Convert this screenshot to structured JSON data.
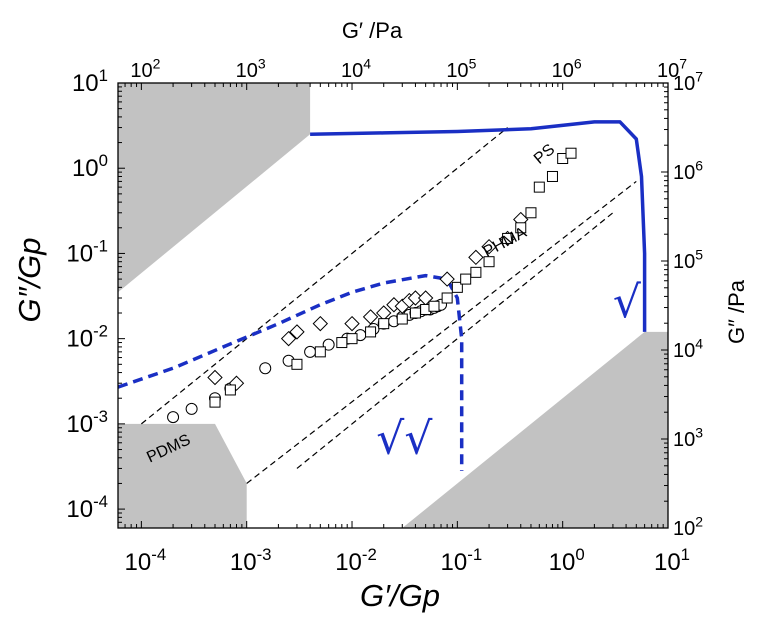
{
  "chart_data": {
    "type": "scatter",
    "title": "",
    "xlabel": "G′/Gp",
    "ylabel": "G″/Gp",
    "x2label": "G′ /Pa",
    "y2label": "G″ /Pa",
    "xscale": "log",
    "yscale": "log",
    "xlim": [
      6e-05,
      10
    ],
    "ylim": [
      6e-05,
      10
    ],
    "x2lim": [
      60,
      10000000
    ],
    "y2lim": [
      100,
      10000000
    ],
    "x_ticks": [
      {
        "value": 0.0001,
        "base": "10",
        "exp": "-4"
      },
      {
        "value": 0.001,
        "base": "10",
        "exp": "-3"
      },
      {
        "value": 0.01,
        "base": "10",
        "exp": "-2"
      },
      {
        "value": 0.1,
        "base": "10",
        "exp": "-1"
      },
      {
        "value": 1,
        "base": "10",
        "exp": "0"
      },
      {
        "value": 10,
        "base": "10",
        "exp": "1"
      }
    ],
    "y_ticks": [
      {
        "value": 0.0001,
        "base": "10",
        "exp": "-4"
      },
      {
        "value": 0.001,
        "base": "10",
        "exp": "-3"
      },
      {
        "value": 0.01,
        "base": "10",
        "exp": "-2"
      },
      {
        "value": 0.1,
        "base": "10",
        "exp": "-1"
      },
      {
        "value": 1,
        "base": "10",
        "exp": "0"
      },
      {
        "value": 10,
        "base": "10",
        "exp": "1"
      }
    ],
    "x2_ticks": [
      {
        "value": 100,
        "base": "10",
        "exp": "2"
      },
      {
        "value": 1000,
        "base": "10",
        "exp": "3"
      },
      {
        "value": 10000,
        "base": "10",
        "exp": "4"
      },
      {
        "value": 100000,
        "base": "10",
        "exp": "5"
      },
      {
        "value": 1000000,
        "base": "10",
        "exp": "6"
      },
      {
        "value": 10000000,
        "base": "10",
        "exp": "7"
      }
    ],
    "y2_ticks": [
      {
        "value": 100,
        "base": "10",
        "exp": "2"
      },
      {
        "value": 1000,
        "base": "10",
        "exp": "3"
      },
      {
        "value": 10000,
        "base": "10",
        "exp": "4"
      },
      {
        "value": 100000,
        "base": "10",
        "exp": "5"
      },
      {
        "value": 1000000,
        "base": "10",
        "exp": "6"
      },
      {
        "value": 10000000,
        "base": "10",
        "exp": "7"
      }
    ],
    "gray_regions": [
      {
        "name": "upper-left-excluded",
        "points": [
          [
            6e-05,
            10
          ],
          [
            6e-05,
            0.035
          ],
          [
            0.004,
            2.5
          ],
          [
            0.004,
            10
          ]
        ]
      },
      {
        "name": "lower-right-excluded",
        "points": [
          [
            0.03,
            6e-05
          ],
          [
            6,
            0.012
          ],
          [
            10,
            0.012
          ],
          [
            10,
            6e-05
          ]
        ]
      },
      {
        "name": "lower-left-excluded",
        "points": [
          [
            6e-05,
            0.001
          ],
          [
            0.0005,
            0.001
          ],
          [
            0.001,
            0.0002
          ],
          [
            0.001,
            6e-05
          ],
          [
            6e-05,
            6e-05
          ]
        ]
      }
    ],
    "dashed_guides": [
      {
        "from": [
          0.0001,
          0.001
        ],
        "to": [
          0.3,
          3
        ]
      },
      {
        "from": [
          0.003,
          0.0003
        ],
        "to": [
          3,
          0.3
        ]
      },
      {
        "from": [
          0.001,
          0.0002
        ],
        "to": [
          5,
          0.7
        ]
      }
    ],
    "series": [
      {
        "name": "PDMS",
        "marker": "circle",
        "points": [
          [
            0.0002,
            0.0012
          ],
          [
            0.0003,
            0.0015
          ],
          [
            0.0005,
            0.002
          ],
          [
            0.0007,
            0.0026
          ],
          [
            0.0015,
            0.0045
          ],
          [
            0.0025,
            0.0055
          ],
          [
            0.004,
            0.007
          ],
          [
            0.006,
            0.0085
          ],
          [
            0.009,
            0.01
          ],
          [
            0.012,
            0.011
          ],
          [
            0.016,
            0.013
          ],
          [
            0.02,
            0.015
          ],
          [
            0.025,
            0.016
          ],
          [
            0.03,
            0.018
          ],
          [
            0.035,
            0.019
          ],
          [
            0.04,
            0.02
          ],
          [
            0.045,
            0.021
          ],
          [
            0.05,
            0.022
          ],
          [
            0.055,
            0.022
          ],
          [
            0.06,
            0.023
          ],
          [
            0.065,
            0.024
          ],
          [
            0.07,
            0.025
          ]
        ]
      },
      {
        "name": "PHMA",
        "marker": "diamond",
        "points": [
          [
            0.0005,
            0.0035
          ],
          [
            0.0008,
            0.003
          ],
          [
            0.0025,
            0.01
          ],
          [
            0.003,
            0.012
          ],
          [
            0.005,
            0.015
          ],
          [
            0.01,
            0.015
          ],
          [
            0.015,
            0.018
          ],
          [
            0.02,
            0.02
          ],
          [
            0.025,
            0.025
          ],
          [
            0.03,
            0.024
          ],
          [
            0.035,
            0.028
          ],
          [
            0.04,
            0.03
          ],
          [
            0.05,
            0.03
          ],
          [
            0.08,
            0.05
          ],
          [
            0.15,
            0.09
          ],
          [
            0.2,
            0.12
          ],
          [
            0.3,
            0.15
          ],
          [
            0.4,
            0.25
          ]
        ]
      },
      {
        "name": "PS",
        "marker": "square",
        "points": [
          [
            0.0005,
            0.0018
          ],
          [
            0.0007,
            0.0025
          ],
          [
            0.003,
            0.005
          ],
          [
            0.005,
            0.007
          ],
          [
            0.008,
            0.009
          ],
          [
            0.01,
            0.01
          ],
          [
            0.015,
            0.012
          ],
          [
            0.02,
            0.015
          ],
          [
            0.03,
            0.017
          ],
          [
            0.04,
            0.02
          ],
          [
            0.05,
            0.022
          ],
          [
            0.06,
            0.024
          ],
          [
            0.08,
            0.03
          ],
          [
            0.1,
            0.04
          ],
          [
            0.12,
            0.05
          ],
          [
            0.15,
            0.06
          ],
          [
            0.2,
            0.08
          ],
          [
            0.3,
            0.15
          ],
          [
            0.4,
            0.2
          ],
          [
            0.5,
            0.3
          ],
          [
            0.6,
            0.6
          ],
          [
            0.8,
            0.8
          ],
          [
            1,
            1.3
          ],
          [
            1.2,
            1.5
          ]
        ]
      }
    ],
    "blue_curves": [
      {
        "name": "sqrt-solid",
        "style": "solid",
        "points": [
          [
            0.004,
            2.5
          ],
          [
            0.02,
            2.6
          ],
          [
            0.1,
            2.7
          ],
          [
            0.5,
            2.9
          ],
          [
            2,
            3.5
          ],
          [
            3.5,
            3.5
          ],
          [
            5,
            2.2
          ],
          [
            5.6,
            0.8
          ],
          [
            6,
            0.1
          ],
          [
            6,
            0.012
          ]
        ]
      },
      {
        "name": "double-sqrt-dashed",
        "style": "dashed",
        "points": [
          [
            6e-05,
            0.0027
          ],
          [
            0.0002,
            0.0045
          ],
          [
            0.0006,
            0.008
          ],
          [
            0.002,
            0.015
          ],
          [
            0.005,
            0.025
          ],
          [
            0.01,
            0.035
          ],
          [
            0.02,
            0.045
          ],
          [
            0.05,
            0.055
          ],
          [
            0.08,
            0.05
          ],
          [
            0.1,
            0.03
          ],
          [
            0.11,
            0.01
          ],
          [
            0.11,
            0.003
          ],
          [
            0.11,
            0.001
          ],
          [
            0.11,
            0.00028
          ]
        ]
      }
    ],
    "annotations": [
      {
        "key": "pdms",
        "text": "PDMS",
        "x": 0.00012,
        "y": 0.00035,
        "rotate": -25
      },
      {
        "key": "phma",
        "text": "PHMA",
        "x": 0.19,
        "y": 0.09,
        "rotate": -28
      },
      {
        "key": "ps",
        "text": "PS",
        "x": 0.6,
        "y": 1.1,
        "rotate": -40
      },
      {
        "key": "sqrt",
        "text": "√",
        "x": 3,
        "y": 0.018,
        "rotate": 0,
        "blue": true
      },
      {
        "key": "dsqrt",
        "text": "√√",
        "x": 0.017,
        "y": 0.00045,
        "rotate": 0,
        "blue": true
      }
    ]
  }
}
